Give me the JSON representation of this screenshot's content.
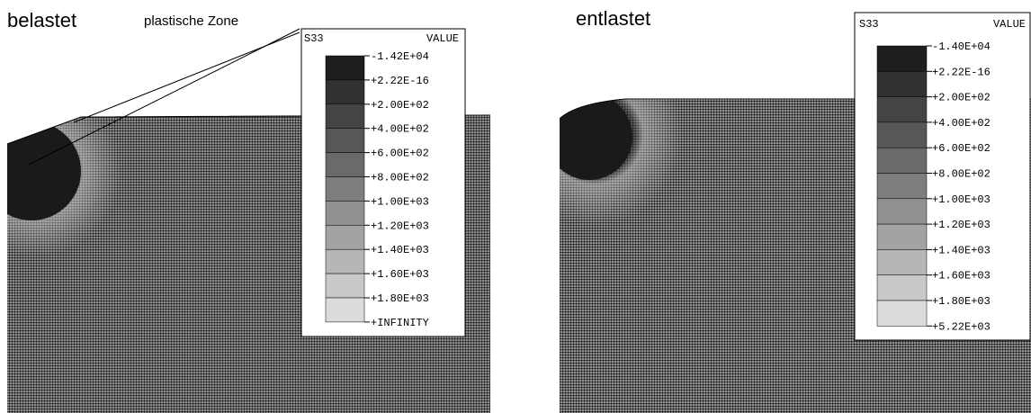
{
  "panels": [
    {
      "title": "belastet",
      "annotation": "plastische Zone",
      "legend": {
        "variable": "S33",
        "header": "VALUE",
        "labels": [
          "-1.42E+04",
          "+2.22E-16",
          "+2.00E+02",
          "+4.00E+02",
          "+6.00E+02",
          "+8.00E+02",
          "+1.00E+03",
          "+1.20E+03",
          "+1.40E+03",
          "+1.60E+03",
          "+1.80E+03",
          "+INFINITY"
        ]
      }
    },
    {
      "title": "entlastet",
      "legend": {
        "variable": "S33",
        "header": "VALUE",
        "labels": [
          "-1.40E+04",
          "+2.22E-16",
          "+2.00E+02",
          "+4.00E+02",
          "+6.00E+02",
          "+8.00E+02",
          "+1.00E+03",
          "+1.20E+03",
          "+1.40E+03",
          "+1.60E+03",
          "+1.80E+03",
          "+5.22E+03"
        ]
      }
    }
  ]
}
